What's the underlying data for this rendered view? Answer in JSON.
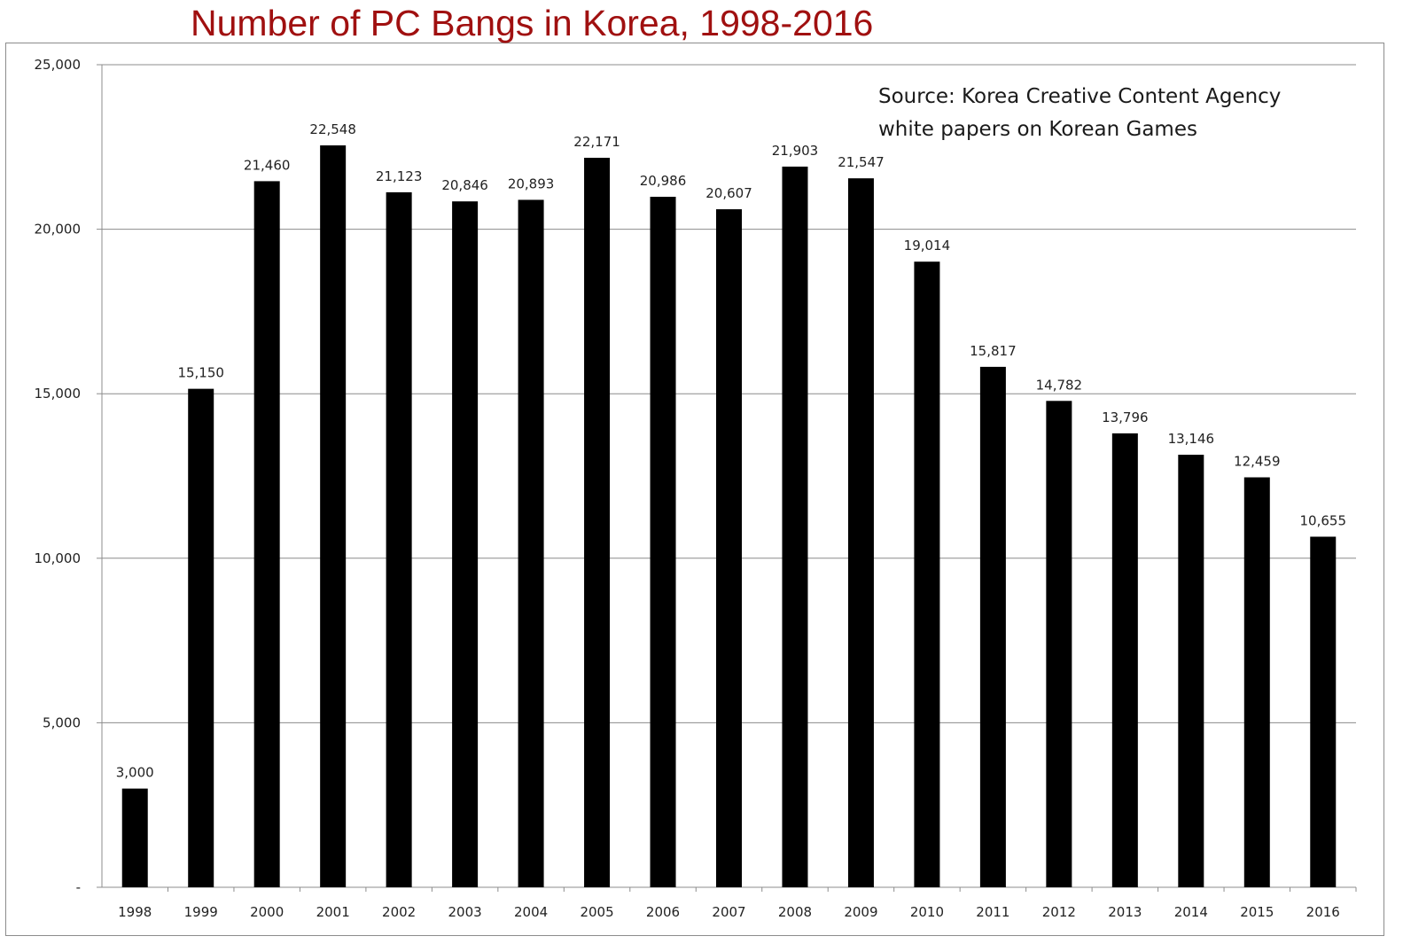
{
  "chart_data": {
    "type": "bar",
    "title": "Number of PC Bangs in Korea, 1998-2016",
    "categories": [
      "1998",
      "1999",
      "2000",
      "2001",
      "2002",
      "2003",
      "2004",
      "2005",
      "2006",
      "2007",
      "2008",
      "2009",
      "2010",
      "2011",
      "2012",
      "2013",
      "2014",
      "2015",
      "2016"
    ],
    "values": [
      3000,
      15150,
      21460,
      22548,
      21123,
      20846,
      20893,
      22171,
      20986,
      20607,
      21903,
      21547,
      19014,
      15817,
      14782,
      13796,
      13146,
      12459,
      10655
    ],
    "value_labels": [
      "3,000",
      "15,150",
      "21,460",
      "22,548",
      "21,123",
      "20,846",
      "20,893",
      "22,171",
      "20,986",
      "20,607",
      "21,903",
      "21,547",
      "19,014",
      "15,817",
      "14,782",
      "13,796",
      "13,146",
      "12,459",
      "10,655"
    ],
    "ylim": [
      0,
      25000
    ],
    "yticks": [
      0,
      5000,
      10000,
      15000,
      20000,
      25000
    ],
    "ytick_labels": [
      "-",
      "5,000",
      "10,000",
      "15,000",
      "20,000",
      "25,000"
    ],
    "grid": true,
    "bar_color": "#000000",
    "title_color": "#a01010",
    "annotation": {
      "line1": "Source:   Korea Creative Content Agency",
      "line2": "white papers on Korean Games"
    }
  }
}
